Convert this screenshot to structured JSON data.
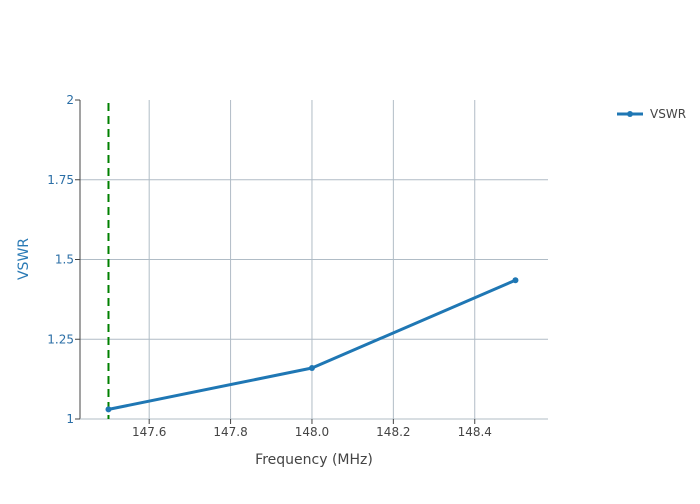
{
  "chart_data": {
    "type": "line",
    "title": "",
    "xlabel": "Frequency (MHz)",
    "ylabel": "VSWR",
    "xlim": [
      147.43,
      148.58
    ],
    "ylim": [
      1,
      2
    ],
    "x_ticks": [
      147.6,
      147.8,
      148.0,
      148.2,
      148.4
    ],
    "x_tick_labels": [
      "147.6",
      "147.8",
      "148.0",
      "148.2",
      "148.4"
    ],
    "y_ticks": [
      1,
      1.25,
      1.5,
      1.75,
      2
    ],
    "y_tick_labels": [
      "1",
      "1.25",
      "1.5",
      "1.75",
      "2"
    ],
    "grid": true,
    "legend_position": "top-right",
    "series": [
      {
        "name": "VSWR",
        "color": "#1f77b4",
        "x": [
          147.5,
          148.0,
          148.5
        ],
        "y": [
          1.03,
          1.16,
          1.435
        ]
      }
    ],
    "reference_lines": [
      {
        "orientation": "vertical",
        "x": 147.5,
        "color": "#008000",
        "style": "dashed"
      }
    ]
  }
}
